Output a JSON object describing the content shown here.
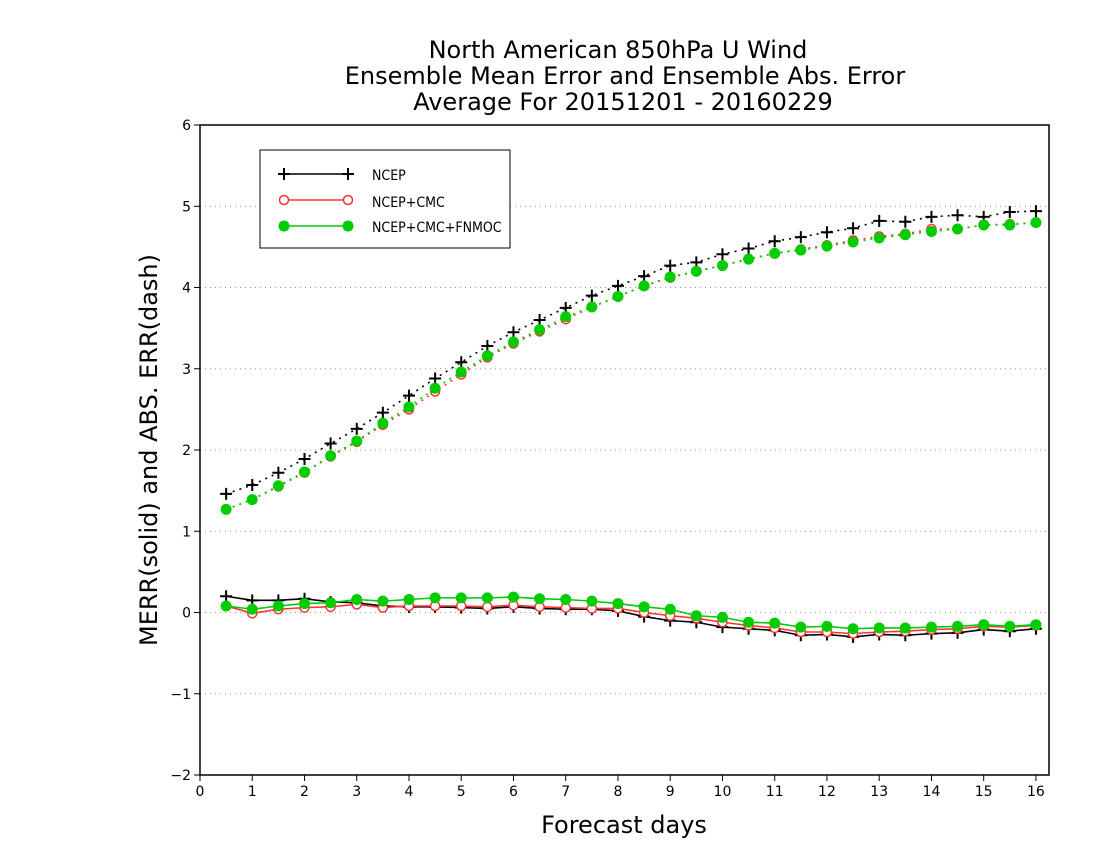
{
  "chart_data": {
    "type": "line",
    "title": "North American 850hPa U Wind",
    "subtitle_lines": [
      "Ensemble Mean Error and Ensemble Abs. Error",
      "Average For 20151201 - 20160229"
    ],
    "xlabel": "Forecast days",
    "ylabel": "MERR(solid) and ABS. ERR(dash)",
    "xlim": [
      0,
      16.25
    ],
    "ylim": [
      -2,
      6
    ],
    "xticks": [
      0,
      1,
      2,
      3,
      4,
      5,
      6,
      7,
      8,
      9,
      10,
      11,
      12,
      13,
      14,
      15,
      16
    ],
    "yticks": [
      -2,
      -1,
      0,
      1,
      2,
      3,
      4,
      5,
      6
    ],
    "ytick_labels": [
      "−2",
      "−1",
      "0",
      "1",
      "2",
      "3",
      "4",
      "5",
      "6"
    ],
    "grid": "horizontal dotted",
    "legend_position": "top-left",
    "x": [
      0.5,
      1.0,
      1.5,
      2.0,
      2.5,
      3.0,
      3.5,
      4.0,
      4.5,
      5.0,
      5.5,
      6.0,
      6.5,
      7.0,
      7.5,
      8.0,
      8.5,
      9.0,
      9.5,
      10.0,
      10.5,
      11.0,
      11.5,
      12.0,
      12.5,
      13.0,
      13.5,
      14.0,
      14.5,
      15.0,
      15.5,
      16.0
    ],
    "series": [
      {
        "name": "NCEP",
        "color": "#000000",
        "marker": "plus",
        "merr": [
          0.2,
          0.15,
          0.15,
          0.17,
          0.13,
          0.12,
          0.08,
          0.07,
          0.07,
          0.06,
          0.05,
          0.07,
          0.05,
          0.04,
          0.04,
          0.02,
          -0.05,
          -0.1,
          -0.12,
          -0.18,
          -0.2,
          -0.22,
          -0.28,
          -0.27,
          -0.3,
          -0.27,
          -0.28,
          -0.26,
          -0.25,
          -0.21,
          -0.23,
          -0.2
        ],
        "abs_err": [
          1.46,
          1.57,
          1.72,
          1.89,
          2.08,
          2.26,
          2.46,
          2.67,
          2.88,
          3.08,
          3.28,
          3.45,
          3.6,
          3.75,
          3.9,
          4.02,
          4.14,
          4.27,
          4.31,
          4.41,
          4.48,
          4.57,
          4.62,
          4.68,
          4.73,
          4.82,
          4.81,
          4.87,
          4.89,
          4.87,
          4.93,
          4.94
        ]
      },
      {
        "name": "NCEP+CMC",
        "color": "#ff3333",
        "marker": "open-circle",
        "merr": [
          0.08,
          -0.01,
          0.04,
          0.06,
          0.07,
          0.1,
          0.06,
          0.08,
          0.08,
          0.08,
          0.07,
          0.09,
          0.07,
          0.06,
          0.05,
          0.05,
          0.0,
          -0.04,
          -0.07,
          -0.12,
          -0.16,
          -0.19,
          -0.24,
          -0.24,
          -0.26,
          -0.24,
          -0.23,
          -0.21,
          -0.2,
          -0.17,
          -0.18,
          -0.16
        ],
        "abs_err": [
          1.27,
          1.39,
          1.55,
          1.72,
          1.92,
          2.1,
          2.31,
          2.5,
          2.72,
          2.93,
          3.14,
          3.31,
          3.46,
          3.61,
          3.76,
          3.89,
          4.02,
          4.12,
          4.2,
          4.27,
          4.35,
          4.42,
          4.47,
          4.52,
          4.58,
          4.63,
          4.66,
          4.72,
          4.72,
          4.77,
          4.78,
          4.8
        ]
      },
      {
        "name": "NCEP+CMC+FNMOC",
        "color": "#00cc00",
        "marker": "filled-circle",
        "merr": [
          0.08,
          0.04,
          0.08,
          0.11,
          0.12,
          0.16,
          0.14,
          0.16,
          0.18,
          0.18,
          0.18,
          0.19,
          0.17,
          0.16,
          0.14,
          0.11,
          0.07,
          0.04,
          -0.04,
          -0.06,
          -0.12,
          -0.13,
          -0.18,
          -0.17,
          -0.2,
          -0.19,
          -0.19,
          -0.18,
          -0.17,
          -0.15,
          -0.17,
          -0.15
        ],
        "abs_err": [
          1.27,
          1.39,
          1.56,
          1.73,
          1.93,
          2.11,
          2.33,
          2.53,
          2.76,
          2.96,
          3.16,
          3.33,
          3.48,
          3.64,
          3.76,
          3.89,
          4.02,
          4.13,
          4.2,
          4.27,
          4.35,
          4.42,
          4.46,
          4.51,
          4.56,
          4.61,
          4.65,
          4.69,
          4.72,
          4.77,
          4.77,
          4.8
        ]
      }
    ]
  }
}
